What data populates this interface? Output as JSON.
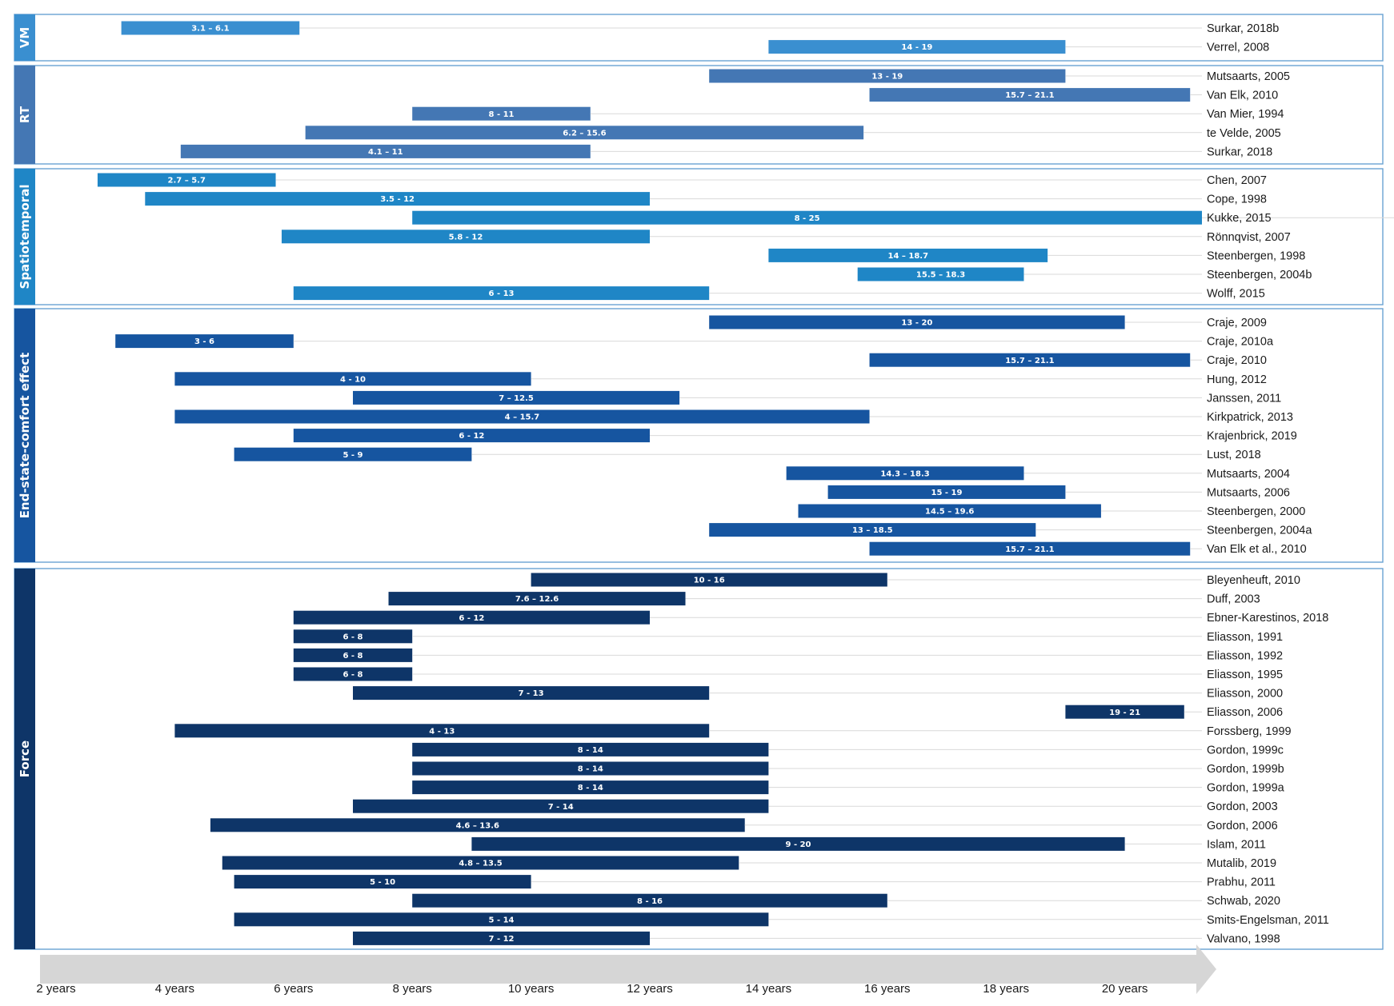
{
  "chart_data": {
    "type": "bar",
    "orientation": "horizontal-range",
    "xunit": "years",
    "xlim": [
      2,
      22
    ],
    "xticks": [
      2,
      4,
      6,
      8,
      10,
      12,
      14,
      16,
      18,
      20
    ],
    "xtick_labels": [
      "2 years",
      "4 years",
      "6 years",
      "8 years",
      "10 years",
      "12 years",
      "14 years",
      "16 years",
      "18 years",
      "20 years"
    ],
    "groups": [
      {
        "name": "VM",
        "color": "#3a8fd0",
        "studies": [
          {
            "study": "Surkar, 2018b",
            "start": 3.1,
            "end": 6.1,
            "label": "3.1 – 6.1"
          },
          {
            "study": "Verrel, 2008",
            "start": 14,
            "end": 19,
            "label": "14 - 19"
          }
        ]
      },
      {
        "name": "RT",
        "color": "#4477b4",
        "studies": [
          {
            "study": "Mutsaarts, 2005",
            "start": 13,
            "end": 19,
            "label": "13 - 19"
          },
          {
            "study": "Van Elk, 2010",
            "start": 15.7,
            "end": 21.1,
            "label": "15.7 – 21.1"
          },
          {
            "study": "Van Mier, 1994",
            "start": 8,
            "end": 11,
            "label": "8 - 11"
          },
          {
            "study": "te Velde, 2005",
            "start": 6.2,
            "end": 15.6,
            "label": "6.2 – 15.6"
          },
          {
            "study": "Surkar, 2018",
            "start": 4.1,
            "end": 11,
            "label": "4.1 – 11"
          }
        ]
      },
      {
        "name": "Spatiotemporal",
        "color": "#1f86c6",
        "studies": [
          {
            "study": "Chen, 2007",
            "start": 2.7,
            "end": 5.7,
            "label": "2.7 – 5.7"
          },
          {
            "study": "Cope, 1998",
            "start": 3.5,
            "end": 12,
            "label": "3.5 - 12"
          },
          {
            "study": "Kukke, 2015",
            "start": 8,
            "end": 25,
            "label": "8 - 25"
          },
          {
            "study": "Rönnqvist, 2007",
            "start": 5.8,
            "end": 12,
            "label": "5.8 - 12"
          },
          {
            "study": "Steenbergen, 1998",
            "start": 14,
            "end": 18.7,
            "label": "14 – 18.7"
          },
          {
            "study": "Steenbergen, 2004b",
            "start": 15.5,
            "end": 18.3,
            "label": "15.5 – 18.3"
          },
          {
            "study": "Wolff, 2015",
            "start": 6,
            "end": 13,
            "label": "6 - 13"
          }
        ]
      },
      {
        "name": "End-state-comfort effect",
        "color": "#1655a0",
        "studies": [
          {
            "study": "Craje, 2009",
            "start": 13,
            "end": 20,
            "label": "13 - 20"
          },
          {
            "study": "Craje, 2010a",
            "start": 3,
            "end": 6,
            "label": "3 - 6"
          },
          {
            "study": "Craje, 2010",
            "start": 15.7,
            "end": 21.1,
            "label": "15.7 – 21.1"
          },
          {
            "study": "Hung, 2012",
            "start": 4,
            "end": 10,
            "label": "4 - 10"
          },
          {
            "study": "Janssen, 2011",
            "start": 7,
            "end": 12.5,
            "label": "7 – 12.5"
          },
          {
            "study": "Kirkpatrick, 2013",
            "start": 4,
            "end": 15.7,
            "label": "4 – 15.7"
          },
          {
            "study": "Krajenbrick, 2019",
            "start": 6,
            "end": 12,
            "label": "6 - 12"
          },
          {
            "study": "Lust, 2018",
            "start": 5,
            "end": 9,
            "label": "5 - 9"
          },
          {
            "study": "Mutsaarts, 2004",
            "start": 14.3,
            "end": 18.3,
            "label": "14.3 – 18.3"
          },
          {
            "study": "Mutsaarts, 2006",
            "start": 15,
            "end": 19,
            "label": "15 - 19"
          },
          {
            "study": "Steenbergen, 2000",
            "start": 14.5,
            "end": 19.6,
            "label": "14.5 – 19.6"
          },
          {
            "study": "Steenbergen, 2004a",
            "start": 13,
            "end": 18.5,
            "label": "13 – 18.5"
          },
          {
            "study": "Van Elk et al., 2010",
            "start": 15.7,
            "end": 21.1,
            "label": "15.7 – 21.1"
          }
        ]
      },
      {
        "name": "Force",
        "color": "#0e3568",
        "studies": [
          {
            "study": "Bleyenheuft, 2010",
            "start": 10,
            "end": 16,
            "label": "10 - 16"
          },
          {
            "study": "Duff, 2003",
            "start": 7.6,
            "end": 12.6,
            "label": "7.6 – 12.6"
          },
          {
            "study": "Ebner-Karestinos, 2018",
            "start": 6,
            "end": 12,
            "label": "6 - 12"
          },
          {
            "study": "Eliasson, 1991",
            "start": 6,
            "end": 8,
            "label": "6 - 8"
          },
          {
            "study": "Eliasson, 1992",
            "start": 6,
            "end": 8,
            "label": "6 - 8"
          },
          {
            "study": "Eliasson, 1995",
            "start": 6,
            "end": 8,
            "label": "6 - 8"
          },
          {
            "study": "Eliasson, 2000",
            "start": 7,
            "end": 13,
            "label": "7 - 13"
          },
          {
            "study": "Eliasson, 2006",
            "start": 19,
            "end": 21,
            "label": "19 - 21"
          },
          {
            "study": "Forssberg, 1999",
            "start": 4,
            "end": 13,
            "label": "4 - 13"
          },
          {
            "study": "Gordon, 1999c",
            "start": 8,
            "end": 14,
            "label": "8 - 14"
          },
          {
            "study": "Gordon, 1999b",
            "start": 8,
            "end": 14,
            "label": "8 - 14"
          },
          {
            "study": "Gordon, 1999a",
            "start": 8,
            "end": 14,
            "label": "8 - 14"
          },
          {
            "study": "Gordon, 2003",
            "start": 7,
            "end": 14,
            "label": "7 - 14"
          },
          {
            "study": "Gordon, 2006",
            "start": 4.6,
            "end": 13.6,
            "label": "4.6 – 13.6"
          },
          {
            "study": "Islam, 2011",
            "start": 9,
            "end": 20,
            "label": "9 - 20"
          },
          {
            "study": "Mutalib, 2019",
            "start": 4.8,
            "end": 13.5,
            "label": "4.8 – 13.5"
          },
          {
            "study": "Prabhu, 2011",
            "start": 5,
            "end": 10,
            "label": "5 - 10"
          },
          {
            "study": "Schwab, 2020",
            "start": 8,
            "end": 16,
            "label": "8 - 16"
          },
          {
            "study": "Smits-Engelsman, 2011",
            "start": 5,
            "end": 14,
            "label": "5 - 14"
          },
          {
            "study": "Valvano, 1998",
            "start": 7,
            "end": 12,
            "label": "7 - 12"
          }
        ]
      }
    ]
  }
}
